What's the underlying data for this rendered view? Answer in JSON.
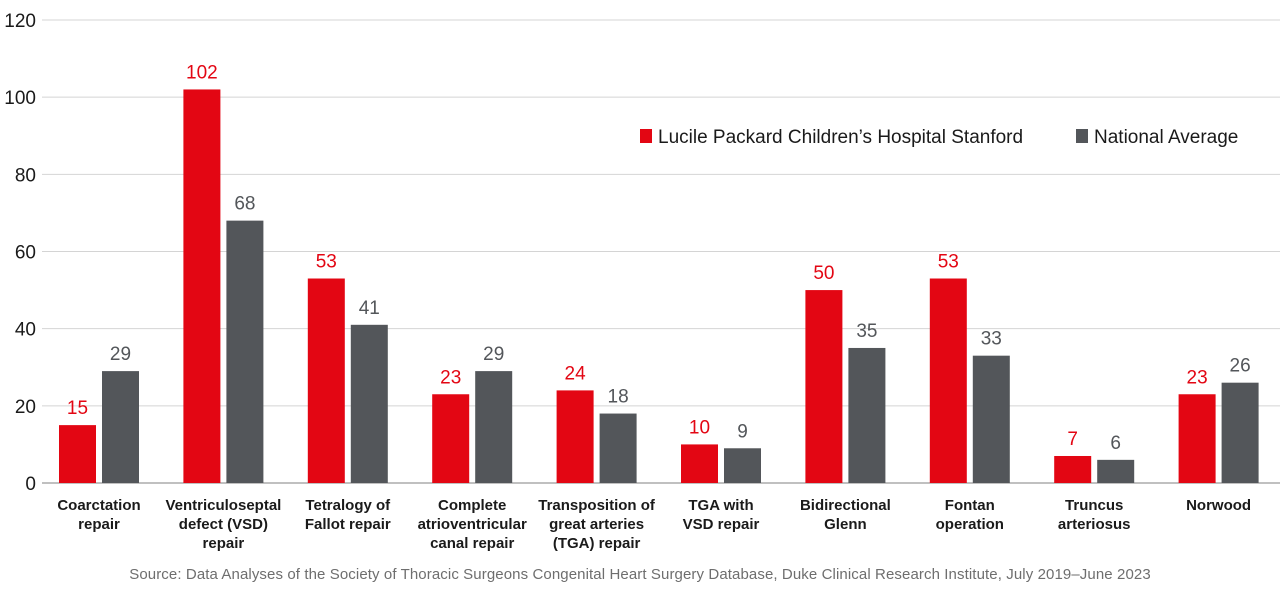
{
  "chart_data": {
    "type": "bar",
    "title": "",
    "xlabel": "",
    "ylabel": "",
    "ylim": [
      0,
      120
    ],
    "yticks": [
      0,
      20,
      40,
      60,
      80,
      100,
      120
    ],
    "grid": true,
    "legend_position": "top-right",
    "categories": [
      [
        "Coarctation",
        "repair"
      ],
      [
        "Ventriculoseptal",
        "defect (VSD)",
        "repair"
      ],
      [
        "Tetralogy of",
        "Fallot repair"
      ],
      [
        "Complete",
        "atrioventricular",
        "canal repair"
      ],
      [
        "Transposition of",
        "great arteries",
        "(TGA) repair"
      ],
      [
        "TGA with",
        "VSD repair"
      ],
      [
        "Bidirectional",
        "Glenn"
      ],
      [
        "Fontan",
        "operation"
      ],
      [
        "Truncus",
        "arteriosus"
      ],
      [
        "Norwood"
      ]
    ],
    "series": [
      {
        "name": "Lucile Packard Children’s Hospital Stanford",
        "color": "#e30613",
        "label_color": "#e30613",
        "values": [
          15,
          102,
          53,
          23,
          24,
          10,
          50,
          53,
          7,
          23
        ]
      },
      {
        "name": "National Average",
        "color": "#53565a",
        "label_color": "#53565a",
        "values": [
          29,
          68,
          41,
          29,
          18,
          9,
          35,
          33,
          6,
          26
        ]
      }
    ],
    "source": "Source: Data Analyses of the Society of Thoracic Surgeons Congenital Heart Surgery Database, Duke Clinical Research Institute, July 2019–June 2023"
  }
}
